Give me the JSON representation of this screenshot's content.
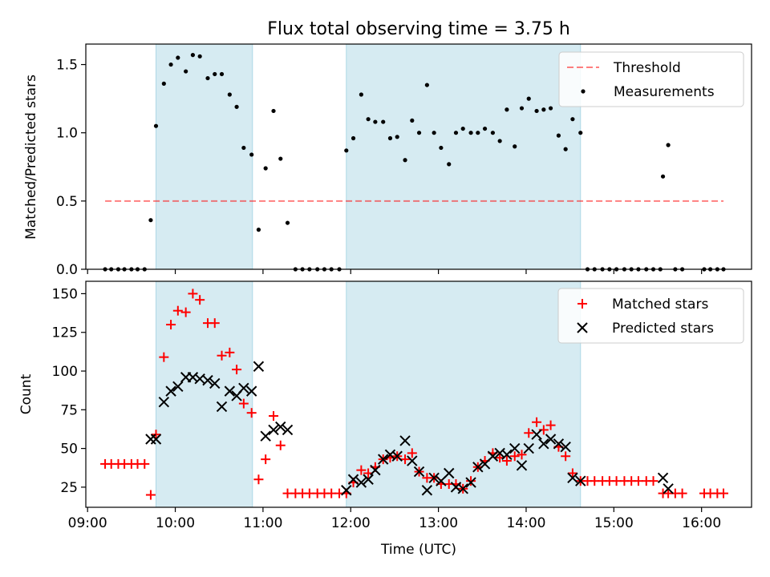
{
  "title": "Flux total observing time = 3.75 h",
  "colors": {
    "shade": "#add8e6",
    "threshold": "#ff0000",
    "matched": "#ff0000",
    "predicted": "#000000",
    "measurements": "#000000"
  },
  "chart_data": [
    {
      "type": "scatter",
      "ylabel": "Matched/Predicted stars",
      "xlim": [
        8.98,
        16.57
      ],
      "ylim": [
        0,
        1.65
      ],
      "yticks": [
        0.0,
        0.5,
        1.0,
        1.5
      ],
      "ytick_labels": [
        "0.0",
        "0.5",
        "1.0",
        "1.5"
      ],
      "shaded_intervals": [
        [
          9.78,
          10.88
        ],
        [
          11.95,
          14.62
        ]
      ],
      "legend_position": "upper right",
      "threshold": {
        "name": "Threshold",
        "y": 0.5,
        "x_range": [
          9.2,
          16.25
        ],
        "style": "dashed"
      },
      "series": [
        {
          "name": "Measurements",
          "marker": "dot",
          "points": [
            [
              9.2,
              0
            ],
            [
              9.27,
              0
            ],
            [
              9.35,
              0
            ],
            [
              9.42,
              0
            ],
            [
              9.5,
              0
            ],
            [
              9.57,
              0
            ],
            [
              9.65,
              0
            ],
            [
              9.72,
              0.36
            ],
            [
              9.78,
              1.05
            ],
            [
              9.87,
              1.36
            ],
            [
              9.95,
              1.5
            ],
            [
              10.03,
              1.55
            ],
            [
              10.12,
              1.45
            ],
            [
              10.2,
              1.57
            ],
            [
              10.28,
              1.56
            ],
            [
              10.37,
              1.4
            ],
            [
              10.45,
              1.43
            ],
            [
              10.53,
              1.43
            ],
            [
              10.62,
              1.28
            ],
            [
              10.7,
              1.19
            ],
            [
              10.78,
              0.89
            ],
            [
              10.87,
              0.84
            ],
            [
              10.95,
              0.29
            ],
            [
              11.03,
              0.74
            ],
            [
              11.12,
              1.16
            ],
            [
              11.2,
              0.81
            ],
            [
              11.28,
              0.34
            ],
            [
              11.37,
              0
            ],
            [
              11.45,
              0
            ],
            [
              11.53,
              0
            ],
            [
              11.62,
              0
            ],
            [
              11.7,
              0
            ],
            [
              11.78,
              0
            ],
            [
              11.87,
              0
            ],
            [
              11.95,
              0.87
            ],
            [
              12.03,
              0.96
            ],
            [
              12.12,
              1.28
            ],
            [
              12.2,
              1.1
            ],
            [
              12.28,
              1.08
            ],
            [
              12.37,
              1.08
            ],
            [
              12.45,
              0.96
            ],
            [
              12.53,
              0.97
            ],
            [
              12.62,
              0.8
            ],
            [
              12.7,
              1.09
            ],
            [
              12.78,
              1.0
            ],
            [
              12.87,
              1.35
            ],
            [
              12.95,
              1.0
            ],
            [
              13.03,
              0.89
            ],
            [
              13.12,
              0.77
            ],
            [
              13.2,
              1.0
            ],
            [
              13.28,
              1.03
            ],
            [
              13.37,
              1.0
            ],
            [
              13.45,
              1.0
            ],
            [
              13.53,
              1.03
            ],
            [
              13.62,
              1.0
            ],
            [
              13.7,
              0.94
            ],
            [
              13.78,
              1.17
            ],
            [
              13.87,
              0.9
            ],
            [
              13.95,
              1.18
            ],
            [
              14.03,
              1.25
            ],
            [
              14.12,
              1.16
            ],
            [
              14.2,
              1.17
            ],
            [
              14.28,
              1.18
            ],
            [
              14.37,
              0.98
            ],
            [
              14.45,
              0.88
            ],
            [
              14.53,
              1.1
            ],
            [
              14.62,
              1.0
            ],
            [
              14.7,
              0
            ],
            [
              14.78,
              0
            ],
            [
              14.87,
              0
            ],
            [
              14.95,
              0
            ],
            [
              15.03,
              0
            ],
            [
              15.12,
              0
            ],
            [
              15.2,
              0
            ],
            [
              15.28,
              0
            ],
            [
              15.37,
              0
            ],
            [
              15.45,
              0
            ],
            [
              15.53,
              0
            ],
            [
              15.56,
              0.68
            ],
            [
              15.62,
              0.91
            ],
            [
              15.7,
              0
            ],
            [
              15.78,
              0
            ],
            [
              16.03,
              0
            ],
            [
              16.1,
              0
            ],
            [
              16.18,
              0
            ],
            [
              16.25,
              0
            ]
          ]
        }
      ]
    },
    {
      "type": "scatter",
      "xlabel": "Time (UTC)",
      "ylabel": "Count",
      "xlim": [
        8.98,
        16.57
      ],
      "ylim": [
        12,
        158
      ],
      "yticks": [
        25,
        50,
        75,
        100,
        125,
        150
      ],
      "ytick_labels": [
        "25",
        "50",
        "75",
        "100",
        "125",
        "150"
      ],
      "xticks": [
        9,
        10,
        11,
        12,
        13,
        14,
        15,
        16
      ],
      "xtick_labels": [
        "09:00",
        "10:00",
        "11:00",
        "12:00",
        "13:00",
        "14:00",
        "15:00",
        "16:00"
      ],
      "shaded_intervals": [
        [
          9.78,
          10.88
        ],
        [
          11.95,
          14.62
        ]
      ],
      "legend_position": "upper right",
      "series": [
        {
          "name": "Matched stars",
          "marker": "plus",
          "points": [
            [
              9.2,
              40
            ],
            [
              9.27,
              40
            ],
            [
              9.35,
              40
            ],
            [
              9.42,
              40
            ],
            [
              9.5,
              40
            ],
            [
              9.57,
              40
            ],
            [
              9.65,
              40
            ],
            [
              9.72,
              20
            ],
            [
              9.78,
              59
            ],
            [
              9.87,
              109
            ],
            [
              9.95,
              130
            ],
            [
              10.03,
              139
            ],
            [
              10.12,
              138
            ],
            [
              10.2,
              150
            ],
            [
              10.28,
              146
            ],
            [
              10.37,
              131
            ],
            [
              10.45,
              131
            ],
            [
              10.53,
              110
            ],
            [
              10.62,
              112
            ],
            [
              10.7,
              101
            ],
            [
              10.78,
              79
            ],
            [
              10.87,
              73
            ],
            [
              10.95,
              30
            ],
            [
              11.03,
              43
            ],
            [
              11.12,
              71
            ],
            [
              11.2,
              52
            ],
            [
              11.28,
              21
            ],
            [
              11.37,
              21
            ],
            [
              11.45,
              21
            ],
            [
              11.53,
              21
            ],
            [
              11.62,
              21
            ],
            [
              11.7,
              21
            ],
            [
              11.78,
              21
            ],
            [
              11.87,
              21
            ],
            [
              11.95,
              21
            ],
            [
              12.03,
              28
            ],
            [
              12.12,
              36
            ],
            [
              12.2,
              34
            ],
            [
              12.28,
              38
            ],
            [
              12.37,
              43
            ],
            [
              12.45,
              44
            ],
            [
              12.53,
              45
            ],
            [
              12.62,
              43
            ],
            [
              12.7,
              47
            ],
            [
              12.78,
              35
            ],
            [
              12.87,
              31
            ],
            [
              12.95,
              31
            ],
            [
              13.03,
              27
            ],
            [
              13.12,
              27
            ],
            [
              13.2,
              27
            ],
            [
              13.28,
              24
            ],
            [
              13.37,
              29
            ],
            [
              13.45,
              38
            ],
            [
              13.53,
              42
            ],
            [
              13.62,
              47
            ],
            [
              13.7,
              44
            ],
            [
              13.78,
              42
            ],
            [
              13.87,
              45
            ],
            [
              13.95,
              46
            ],
            [
              14.03,
              60
            ],
            [
              14.12,
              67
            ],
            [
              14.2,
              62
            ],
            [
              14.28,
              65
            ],
            [
              14.37,
              51
            ],
            [
              14.45,
              45
            ],
            [
              14.53,
              34
            ],
            [
              14.62,
              29
            ],
            [
              14.7,
              29
            ],
            [
              14.78,
              29
            ],
            [
              14.87,
              29
            ],
            [
              14.95,
              29
            ],
            [
              15.03,
              29
            ],
            [
              15.12,
              29
            ],
            [
              15.2,
              29
            ],
            [
              15.28,
              29
            ],
            [
              15.37,
              29
            ],
            [
              15.45,
              29
            ],
            [
              15.56,
              21
            ],
            [
              15.62,
              21
            ],
            [
              15.7,
              21
            ],
            [
              15.78,
              21
            ],
            [
              16.03,
              21
            ],
            [
              16.1,
              21
            ],
            [
              16.18,
              21
            ],
            [
              16.25,
              21
            ]
          ]
        },
        {
          "name": "Predicted stars",
          "marker": "x",
          "points": [
            [
              9.72,
              56
            ],
            [
              9.78,
              56
            ],
            [
              9.87,
              80
            ],
            [
              9.95,
              87
            ],
            [
              10.03,
              90
            ],
            [
              10.12,
              96
            ],
            [
              10.2,
              96
            ],
            [
              10.28,
              95
            ],
            [
              10.37,
              94
            ],
            [
              10.45,
              92
            ],
            [
              10.53,
              77
            ],
            [
              10.62,
              87
            ],
            [
              10.7,
              84
            ],
            [
              10.78,
              89
            ],
            [
              10.87,
              87
            ],
            [
              10.95,
              103
            ],
            [
              11.03,
              58
            ],
            [
              11.12,
              62
            ],
            [
              11.2,
              64
            ],
            [
              11.28,
              62
            ],
            [
              11.95,
              23
            ],
            [
              12.03,
              30
            ],
            [
              12.12,
              28
            ],
            [
              12.2,
              30
            ],
            [
              12.28,
              36
            ],
            [
              12.37,
              43
            ],
            [
              12.45,
              46
            ],
            [
              12.53,
              45
            ],
            [
              12.62,
              55
            ],
            [
              12.7,
              42
            ],
            [
              12.78,
              35
            ],
            [
              12.87,
              23
            ],
            [
              12.95,
              31
            ],
            [
              13.03,
              29
            ],
            [
              13.12,
              34
            ],
            [
              13.2,
              25
            ],
            [
              13.28,
              24
            ],
            [
              13.37,
              28
            ],
            [
              13.45,
              38
            ],
            [
              13.53,
              40
            ],
            [
              13.62,
              45
            ],
            [
              13.7,
              47
            ],
            [
              13.78,
              46
            ],
            [
              13.87,
              50
            ],
            [
              13.95,
              39
            ],
            [
              14.03,
              50
            ],
            [
              14.12,
              59
            ],
            [
              14.2,
              53
            ],
            [
              14.28,
              56
            ],
            [
              14.37,
              53
            ],
            [
              14.45,
              51
            ],
            [
              14.53,
              31
            ],
            [
              14.62,
              29
            ],
            [
              15.56,
              31
            ],
            [
              15.62,
              24
            ]
          ]
        }
      ]
    }
  ]
}
